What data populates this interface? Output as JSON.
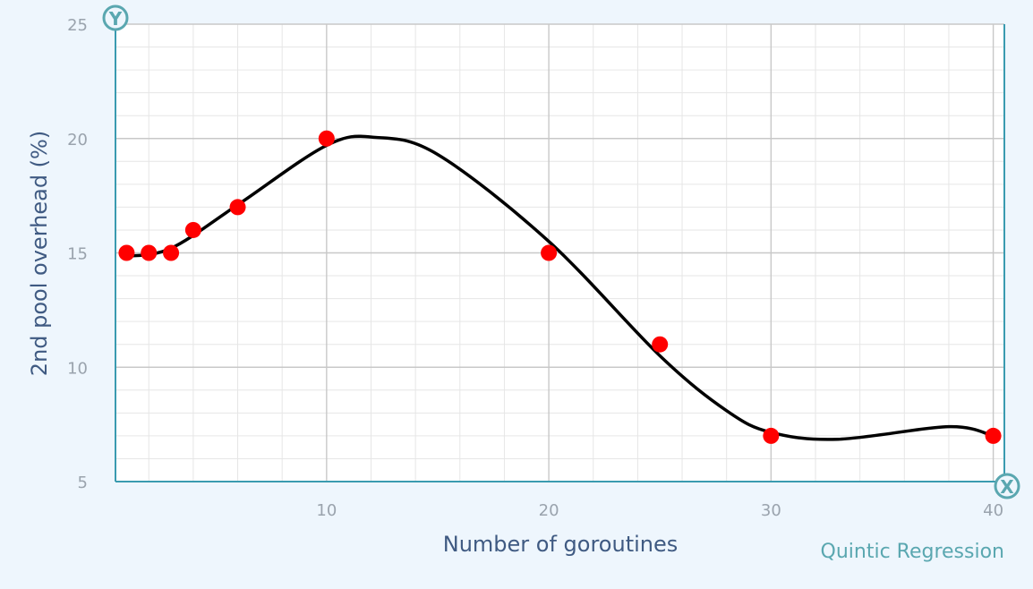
{
  "chart_data": {
    "type": "scatter",
    "xlabel": "Number of goroutines",
    "ylabel": "2nd pool overhead (%)",
    "xlim": [
      0.5,
      40.5
    ],
    "ylim": [
      5,
      25
    ],
    "xticks": [
      10,
      20,
      30,
      40
    ],
    "yticks": [
      5,
      10,
      15,
      20,
      25
    ],
    "grid": true,
    "series": [
      {
        "name": "",
        "type": "scatter",
        "color": "#ff0000",
        "points": [
          {
            "x": 1,
            "y": 15
          },
          {
            "x": 2,
            "y": 15
          },
          {
            "x": 3,
            "y": 15
          },
          {
            "x": 4,
            "y": 16
          },
          {
            "x": 6,
            "y": 17
          },
          {
            "x": 10,
            "y": 20
          },
          {
            "x": 20,
            "y": 15
          },
          {
            "x": 25,
            "y": 11
          },
          {
            "x": 30,
            "y": 7
          },
          {
            "x": 40,
            "y": 7
          }
        ]
      },
      {
        "name": "Quintic Regression",
        "type": "line",
        "color": "#000000",
        "points": [
          {
            "x": 1,
            "y": 14.85
          },
          {
            "x": 3,
            "y": 15.2
          },
          {
            "x": 6,
            "y": 17.1
          },
          {
            "x": 10,
            "y": 19.7
          },
          {
            "x": 12.2,
            "y": 20.05
          },
          {
            "x": 15,
            "y": 19.3
          },
          {
            "x": 20,
            "y": 15.5
          },
          {
            "x": 25,
            "y": 10.5
          },
          {
            "x": 28,
            "y": 8.1
          },
          {
            "x": 30,
            "y": 7.15
          },
          {
            "x": 33,
            "y": 6.85
          },
          {
            "x": 38,
            "y": 7.4
          },
          {
            "x": 40,
            "y": 7.0
          }
        ]
      }
    ],
    "annotations": {
      "y_badge": "Y",
      "x_badge": "X",
      "regression_label": "Quintic Regression"
    },
    "colors": {
      "background": "#eef6fd",
      "plot_background": "#ffffff",
      "axis": "#3a9bb0",
      "grid_major": "#c8c8c8",
      "grid_minor": "#e6e6e6",
      "point": "#ff0000",
      "curve": "#000000",
      "badge": "#5aa7b0"
    }
  }
}
